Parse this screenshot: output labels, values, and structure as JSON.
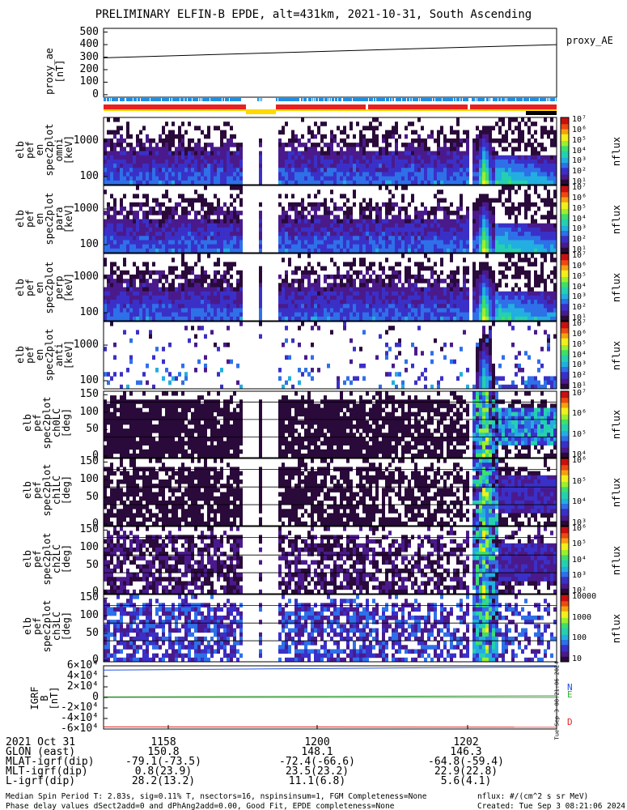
{
  "title": "PRELIMINARY ELFIN-B EPDE, alt=431km, 2021-10-31, South Ascending",
  "colors": {
    "red": "#e8201e",
    "blue": "#1f8fe6",
    "yellow": "#ffd800",
    "black": "#000000",
    "green": "#2fb12f"
  },
  "colormap": [
    "#ffffff",
    "#2a0a3a",
    "#4a1a8c",
    "#3a30c8",
    "#2e70e8",
    "#22aee0",
    "#25d0b0",
    "#3fdf6a",
    "#9cef2e",
    "#f2ef1a",
    "#f5a010",
    "#ec4a10",
    "#c81010"
  ],
  "spin_bar": {
    "note_colors": [
      "red",
      "blue",
      "yellow",
      "black"
    ]
  },
  "chart_data": [
    {
      "type": "line",
      "panel": "proxy_ae",
      "ylabel": "proxy_ae\n[nT]",
      "yticks": [
        "500",
        "400",
        "300",
        "200",
        "100",
        "0"
      ],
      "ylim": [
        -20,
        530
      ],
      "legend": "proxy_AE",
      "series": [
        {
          "name": "proxy_AE",
          "x": [
            0,
            1
          ],
          "values": [
            295,
            400
          ]
        }
      ]
    },
    {
      "type": "heatmap",
      "panel": "en_1",
      "ylabel": "elb\npef\nen\nspec2plot\nomni\n[keV]",
      "yticks": [
        "1000",
        "100"
      ],
      "colorbar": {
        "label": "nflux",
        "ticks": [
          "10^7",
          "10^6",
          "10^5",
          "10^4",
          "10^3",
          "10^2",
          "10^1"
        ]
      }
    },
    {
      "type": "heatmap",
      "panel": "en_2",
      "ylabel": "elb\npef\nen\nspec2plot\npara\n[keV]",
      "yticks": [
        "1000",
        "100"
      ],
      "colorbar": {
        "label": "nflux",
        "ticks": [
          "10^7",
          "10^6",
          "10^5",
          "10^4",
          "10^3",
          "10^2",
          "10^1"
        ]
      }
    },
    {
      "type": "heatmap",
      "panel": "en_3",
      "ylabel": "elb\npef\nen\nspec2plot\nperp\n[keV]",
      "yticks": [
        "1000",
        "100"
      ],
      "colorbar": {
        "label": "nflux",
        "ticks": [
          "10^7",
          "10^6",
          "10^5",
          "10^4",
          "10^3",
          "10^2",
          "10^1"
        ]
      }
    },
    {
      "type": "heatmap",
      "panel": "en_4",
      "ylabel": "elb\npef\nen\nspec2plot\nanti\n[keV]",
      "yticks": [
        "1000",
        "100"
      ],
      "colorbar": {
        "label": "nflux",
        "ticks": [
          "10^7",
          "10^6",
          "10^5",
          "10^4",
          "10^3",
          "10^2",
          "10^1"
        ]
      }
    },
    {
      "type": "heatmap",
      "panel": "pa_0",
      "ylabel": "elb\npef\nspec2plot\nch0LC\n[deg]",
      "yticks": [
        "150",
        "100",
        "50",
        "0"
      ],
      "colorbar": {
        "label": "nflux",
        "ticks": [
          "10^7",
          "10^6",
          "10^5",
          "10^4"
        ]
      }
    },
    {
      "type": "heatmap",
      "panel": "pa_1",
      "ylabel": "elb\npef\nspec2plot\nch1LC\n[deg]",
      "yticks": [
        "150",
        "100",
        "50",
        "0"
      ],
      "colorbar": {
        "label": "nflux",
        "ticks": [
          "10^6",
          "10^5",
          "10^4",
          "10^3"
        ]
      }
    },
    {
      "type": "heatmap",
      "panel": "pa_2",
      "ylabel": "elb\npef\nspec2plot\nch2LC\n[deg]",
      "yticks": [
        "150",
        "100",
        "50",
        "0"
      ],
      "colorbar": {
        "label": "nflux",
        "ticks": [
          "10^6",
          "10^5",
          "10^4",
          "10^3",
          "10^2"
        ]
      }
    },
    {
      "type": "heatmap",
      "panel": "pa_3",
      "ylabel": "elb\npef\nspec2plot\nch3LC\n[deg]",
      "yticks": [
        "150",
        "100",
        "50",
        "0"
      ],
      "colorbar": {
        "label": "nflux",
        "ticks": [
          "10000",
          "1000",
          "100",
          "10"
        ]
      }
    },
    {
      "type": "line",
      "panel": "igrf",
      "ylabel": "IGRF\nB\n[nT]",
      "yticks": [
        "6×10^4",
        "4×10^4",
        "2×10^4",
        "0",
        "-2×10^4",
        "-4×10^4",
        "-6×10^4"
      ],
      "ylim": [
        -60000,
        60000
      ],
      "series": [
        {
          "name": "N",
          "color": "#1f50e0",
          "x": [
            0,
            1
          ],
          "values": [
            52000,
            58000
          ]
        },
        {
          "name": "E",
          "color": "#2fb12f",
          "x": [
            0,
            1
          ],
          "values": [
            1000,
            3000
          ]
        },
        {
          "name": "D",
          "color": "#e8201e",
          "x": [
            0,
            1
          ],
          "values": [
            -56000,
            -56500
          ]
        }
      ]
    }
  ],
  "footer": {
    "rows": [
      [
        "2021 Oct 31",
        "1158",
        "1200",
        "1202"
      ],
      [
        "GLON (east)",
        "150.8",
        "148.1",
        "146.3"
      ],
      [
        "MLAT-igrf(dip)",
        "-79.1(-73.5)",
        "-72.4(-66.6)",
        "-64.8(-59.4)"
      ],
      [
        "MLT-igrf(dip)",
        "0.8(23.9)",
        "23.5(23.2)",
        "22.9(22.8)"
      ],
      [
        "L-igrf(dip)",
        "28.2(13.2)",
        "11.1(6.8)",
        "5.6(4.1)"
      ]
    ],
    "note1": "Median Spin Period T: 2.83s, sig=0.11% T, nsectors=16, nspinsinsum=1, FGM Completeness=None",
    "note2": "Phase delay values dSect2add=0 and dPhAng2add=0.00, Good Fit, EPDE completeness=None",
    "nflux_units": "nflux: #/(cm^2 s sr MeV)",
    "created": "Created: Tue Sep  3 08:21:06 2024",
    "side_stamp": "Tue Sep  3 08:21:06 2024"
  }
}
